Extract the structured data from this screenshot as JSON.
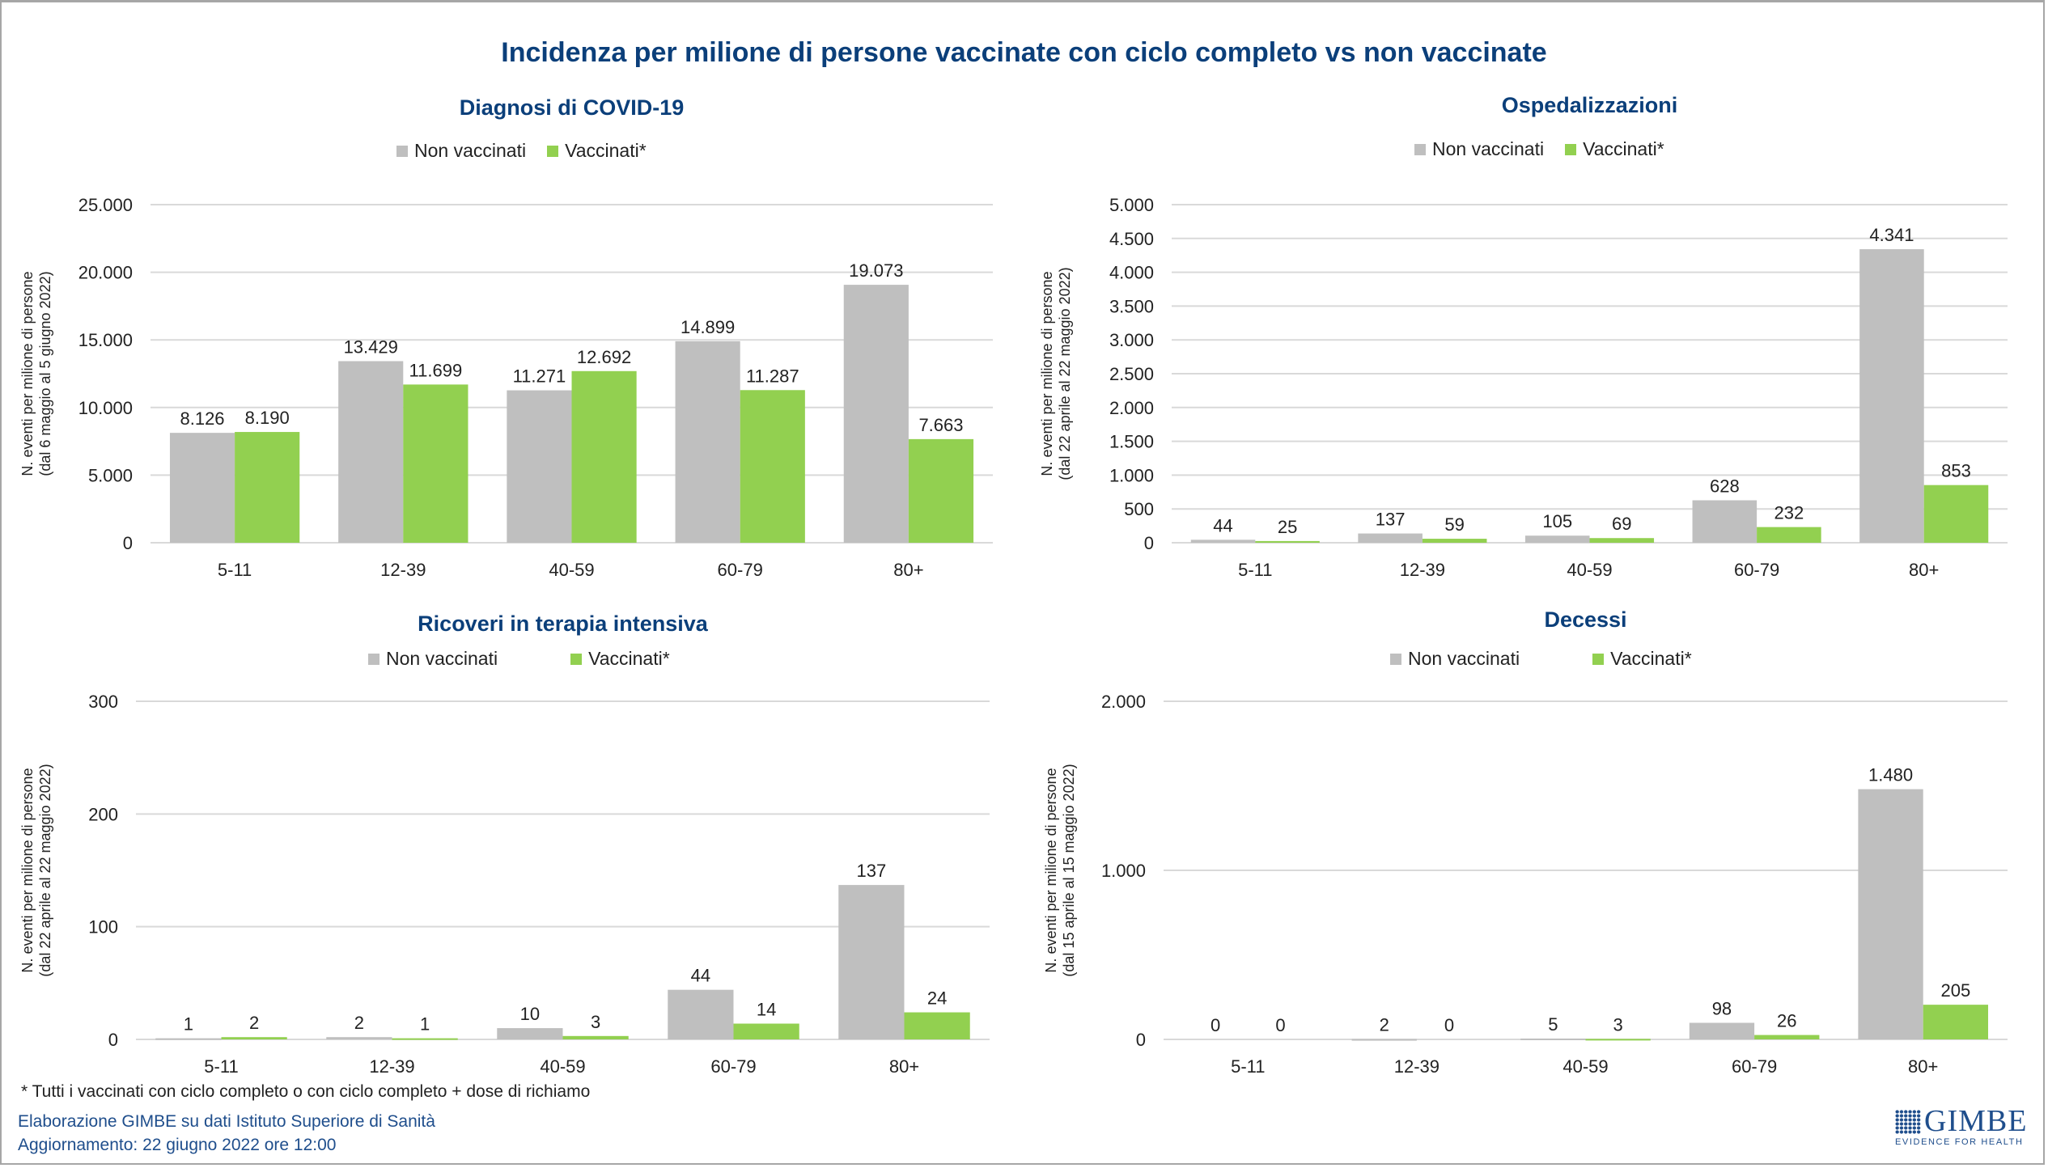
{
  "title": "Incidenza per milione di persone vaccinate con ciclo completo vs non vaccinate",
  "colors": {
    "non_vaccinati": "#bfbfbf",
    "vaccinati": "#92d050",
    "title": "#0b3f7a",
    "grid": "#d9d9d9"
  },
  "legend": {
    "non_vaccinati": "Non vaccinati",
    "vaccinati": "Vaccinati*"
  },
  "chart_data": [
    {
      "type": "bar",
      "title": "Diagnosi di COVID-19",
      "ylabel_line1": "N. eventi per milione di persone",
      "ylabel_line2": "(dal 6  maggio al 5  giugno 2022)",
      "xlabel": "",
      "categories": [
        "5-11",
        "12-39",
        "40-59",
        "60-79",
        "80+"
      ],
      "ylim": [
        0,
        25000
      ],
      "yticks": [
        0,
        5000,
        10000,
        15000,
        20000,
        25000
      ],
      "ytick_labels": [
        "0",
        "5.000",
        "10.000",
        "15.000",
        "20.000",
        "25.000"
      ],
      "grid": true,
      "legend_position": "top-center",
      "series": [
        {
          "name": "Non vaccinati",
          "values": [
            8126,
            13429,
            11271,
            14899,
            19073
          ],
          "labels": [
            "8.126",
            "13.429",
            "11.271",
            "14.899",
            "19.073"
          ]
        },
        {
          "name": "Vaccinati*",
          "values": [
            8190,
            11699,
            12692,
            11287,
            7663
          ],
          "labels": [
            "8.190",
            "11.699",
            "12.692",
            "11.287",
            "7.663"
          ]
        }
      ]
    },
    {
      "type": "bar",
      "title": "Ospedalizzazioni",
      "ylabel_line1": "N. eventi per milione di persone",
      "ylabel_line2": "(dal 22  aprile al 22  maggio 2022)",
      "xlabel": "",
      "categories": [
        "5-11",
        "12-39",
        "40-59",
        "60-79",
        "80+"
      ],
      "ylim": [
        0,
        5000
      ],
      "yticks": [
        0,
        500,
        1000,
        1500,
        2000,
        2500,
        3000,
        3500,
        4000,
        4500,
        5000
      ],
      "ytick_labels": [
        "0",
        "500",
        "1.000",
        "1.500",
        "2.000",
        "2.500",
        "3.000",
        "3.500",
        "4.000",
        "4.500",
        "5.000"
      ],
      "grid": true,
      "legend_position": "top-center",
      "series": [
        {
          "name": "Non vaccinati",
          "values": [
            44,
            137,
            105,
            628,
            4341
          ],
          "labels": [
            "44",
            "137",
            "105",
            "628",
            "4.341"
          ]
        },
        {
          "name": "Vaccinati*",
          "values": [
            25,
            59,
            69,
            232,
            853
          ],
          "labels": [
            "25",
            "59",
            "69",
            "232",
            "853"
          ]
        }
      ]
    },
    {
      "type": "bar",
      "title": "Ricoveri in terapia intensiva",
      "ylabel_line1": "N. eventi per milione di persone",
      "ylabel_line2": "(dal 22  aprile al 22  maggio 2022)",
      "xlabel": "",
      "categories": [
        "5-11",
        "12-39",
        "40-59",
        "60-79",
        "80+"
      ],
      "ylim": [
        0,
        300
      ],
      "yticks": [
        0,
        100,
        200,
        300
      ],
      "ytick_labels": [
        "0",
        "100",
        "200",
        "300"
      ],
      "grid": true,
      "legend_position": "top-center",
      "series": [
        {
          "name": "Non vaccinati",
          "values": [
            1,
            2,
            10,
            44,
            137
          ],
          "labels": [
            "1",
            "2",
            "10",
            "44",
            "137"
          ]
        },
        {
          "name": "Vaccinati*",
          "values": [
            2,
            1,
            3,
            14,
            24
          ],
          "labels": [
            "2",
            "1",
            "3",
            "14",
            "24"
          ]
        }
      ]
    },
    {
      "type": "bar",
      "title": "Decessi",
      "ylabel_line1": "N. eventi per milione di persone",
      "ylabel_line2": "(dal 15  aprile al 15  maggio 2022)",
      "xlabel": "",
      "categories": [
        "5-11",
        "12-39",
        "40-59",
        "60-79",
        "80+"
      ],
      "ylim": [
        0,
        2000
      ],
      "yticks": [
        0,
        1000,
        2000
      ],
      "ytick_labels": [
        "0",
        "1.000",
        "2.000"
      ],
      "grid": true,
      "legend_position": "top-center",
      "series": [
        {
          "name": "Non vaccinati",
          "values": [
            0,
            2,
            5,
            98,
            1480
          ],
          "labels": [
            "0",
            "2",
            "5",
            "98",
            "1.480"
          ]
        },
        {
          "name": "Vaccinati*",
          "values": [
            0,
            0,
            3,
            26,
            205
          ],
          "labels": [
            "0",
            "0",
            "3",
            "26",
            "205"
          ]
        }
      ]
    }
  ],
  "footnote": "* Tutti i vaccinati con ciclo completo o con ciclo completo +  dose di richiamo",
  "source": "Elaborazione GIMBE su dati Istituto Superiore di Sanità",
  "updated": "Aggiornamento: 22 giugno 2022 ore 12:00",
  "logo": {
    "name": "GIMBE",
    "tagline": "EVIDENCE FOR HEALTH"
  }
}
